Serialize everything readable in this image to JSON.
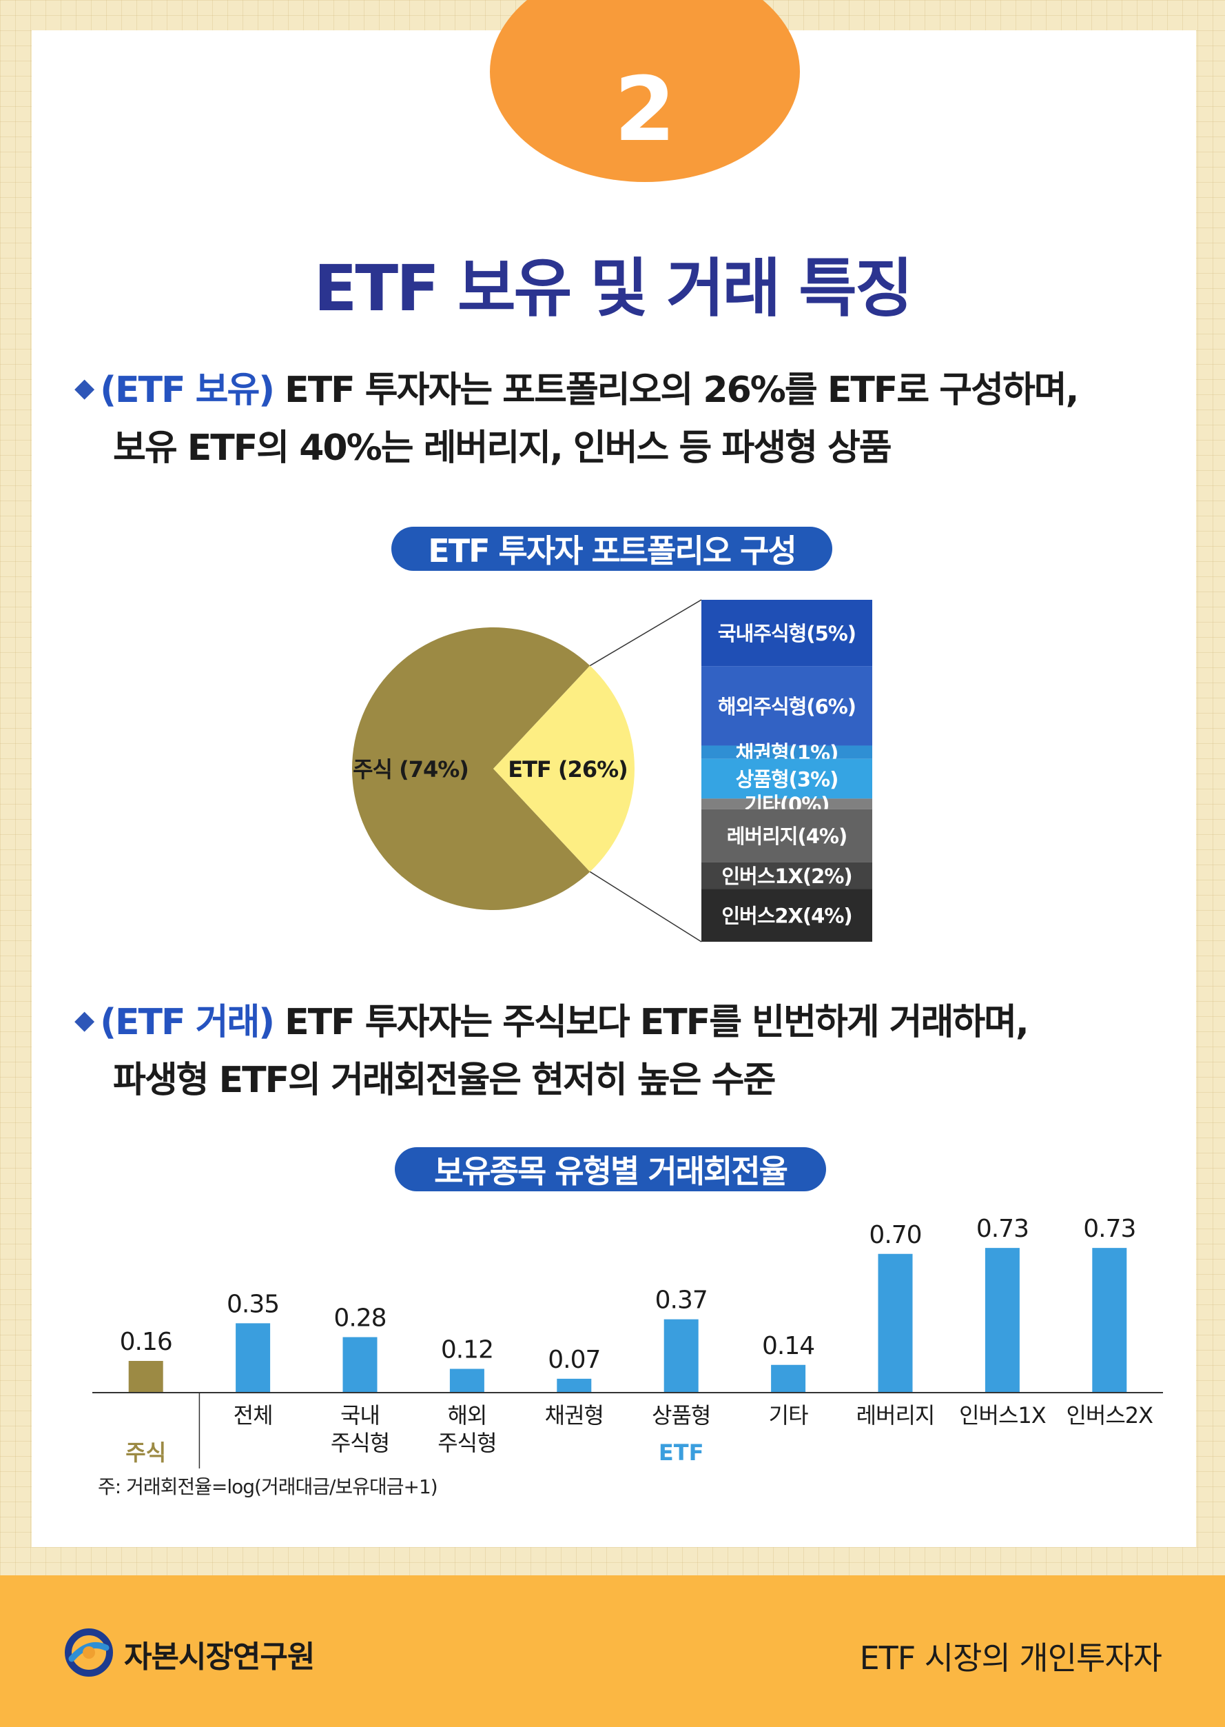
{
  "page_number": "2",
  "title": "ETF 보유 및 거래 특징",
  "section1": {
    "tag": "(ETF 보유)",
    "line1": " ETF 투자자는 포트폴리오의 26%를 ETF로 구성하며,",
    "line2": "보유 ETF의 40%는 레버리지, 인버스 등 파생형 상품"
  },
  "section2": {
    "tag": "(ETF 거래)",
    "line1": " ETF 투자자는 주식보다 ETF를 빈번하게 거래하며,",
    "line2": "파생형 ETF의 거래회전율은 현저히 높은 수준"
  },
  "colors": {
    "title": "#2b3490",
    "accent": "#2553c0",
    "badge": "#f89b3a",
    "stock": "#9c8a44",
    "etf": "#fdee83",
    "bar": "#3a9ede",
    "footer": "#fbb743"
  },
  "chart_data": [
    {
      "type": "pie",
      "title": "ETF 투자자 포트폴리오 구성",
      "slices": [
        {
          "label": "주식 (74%)",
          "value": 74,
          "color": "#9c8a44"
        },
        {
          "label": "ETF (26%)",
          "value": 26,
          "color": "#fdee83"
        }
      ],
      "breakdown": {
        "of": "ETF",
        "items": [
          {
            "label": "국내주식형(5%)",
            "value": 5,
            "color": "#1f4fb5"
          },
          {
            "label": "해외주식형(6%)",
            "value": 6,
            "color": "#3262c4"
          },
          {
            "label": "채권형(1%)",
            "value": 1,
            "color": "#2f8fd4"
          },
          {
            "label": "상품형(3%)",
            "value": 3,
            "color": "#35a4e3"
          },
          {
            "label": "기타(0%)",
            "value": 0,
            "color": "#808080"
          },
          {
            "label": "레버리지(4%)",
            "value": 4,
            "color": "#636363"
          },
          {
            "label": "인버스1X(2%)",
            "value": 2,
            "color": "#434343"
          },
          {
            "label": "인버스2X(4%)",
            "value": 4,
            "color": "#2b2b2b"
          }
        ]
      }
    },
    {
      "type": "bar",
      "title": "보유종목 유형별 거래회전율",
      "categories": [
        "",
        "전체",
        "국내\n주식형",
        "해외\n주식형",
        "채권형",
        "상품형",
        "기타",
        "레버리지",
        "인버스1X",
        "인버스2X"
      ],
      "values": [
        0.16,
        0.35,
        0.28,
        0.12,
        0.07,
        0.37,
        0.14,
        0.7,
        0.73,
        0.73
      ],
      "value_labels": [
        "0.16",
        "0.35",
        "0.28",
        "0.12",
        "0.07",
        "0.37",
        "0.14",
        "0.70",
        "0.73",
        "0.73"
      ],
      "groups": [
        {
          "label": "주식",
          "color": "#9c8a44",
          "first": 0,
          "last": 0
        },
        {
          "label": "ETF",
          "color": "#3a9ede",
          "first": 1,
          "last": 9
        }
      ],
      "ylim": [
        0,
        0.8
      ]
    }
  ],
  "note": "주: 거래회전율=log(거래대금/보유대금+1)",
  "footer": {
    "org": "자본시장연구원",
    "report": "ETF 시장의 개인투자자"
  }
}
